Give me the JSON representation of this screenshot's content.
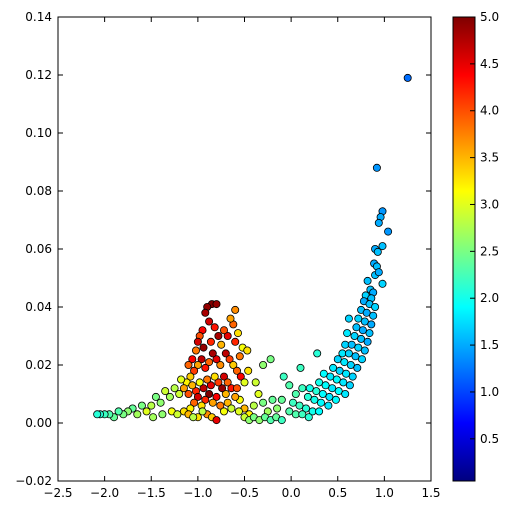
{
  "chart_data": {
    "type": "scatter",
    "title": "",
    "xlabel": "",
    "ylabel": "",
    "xlim": [
      -2.5,
      1.5
    ],
    "ylim": [
      -0.02,
      0.14
    ],
    "x_ticks": [
      "−2.5",
      "−2.0",
      "−1.5",
      "−1.0",
      "−0.5",
      "0.0",
      "0.5",
      "1.0",
      "1.5"
    ],
    "y_ticks": [
      "−0.02",
      "0.00",
      "0.02",
      "0.04",
      "0.06",
      "0.08",
      "0.10",
      "0.12",
      "0.14"
    ],
    "grid": false,
    "colormap": "jet",
    "colorbar": {
      "range": [
        0.05,
        5.0
      ],
      "ticks": [
        "0.5",
        "1.0",
        "1.5",
        "2.0",
        "2.5",
        "3.0",
        "3.5",
        "4.0",
        "4.5",
        "5.0"
      ],
      "colors": [
        "#00007f",
        "#0000ff",
        "#007fff",
        "#00ffff",
        "#7fff7f",
        "#ffff00",
        "#ff7f00",
        "#ff0000",
        "#7f0000"
      ]
    },
    "marker": {
      "shape": "circle",
      "edge_color": "#000000"
    },
    "series": [
      {
        "points": [
          [
            1.25,
            0.119,
            1.2
          ],
          [
            0.92,
            0.088,
            1.4
          ],
          [
            0.98,
            0.073,
            1.4
          ],
          [
            0.96,
            0.071,
            1.5
          ],
          [
            0.94,
            0.069,
            1.5
          ],
          [
            1.04,
            0.066,
            1.4
          ],
          [
            0.9,
            0.06,
            1.5
          ],
          [
            0.93,
            0.059,
            1.6
          ],
          [
            0.98,
            0.061,
            1.6
          ],
          [
            0.89,
            0.055,
            1.5
          ],
          [
            0.92,
            0.054,
            1.6
          ],
          [
            0.9,
            0.051,
            1.6
          ],
          [
            0.94,
            0.052,
            1.5
          ],
          [
            0.82,
            0.049,
            1.6
          ],
          [
            0.98,
            0.048,
            1.7
          ],
          [
            0.85,
            0.046,
            1.6
          ],
          [
            0.88,
            0.045,
            1.5
          ],
          [
            0.8,
            0.044,
            1.7
          ],
          [
            0.86,
            0.043,
            1.6
          ],
          [
            0.78,
            0.042,
            1.5
          ],
          [
            0.84,
            0.041,
            1.6
          ],
          [
            0.9,
            0.04,
            1.7
          ],
          [
            0.75,
            0.039,
            1.6
          ],
          [
            0.81,
            0.038,
            1.5
          ],
          [
            0.88,
            0.037,
            1.6
          ],
          [
            0.72,
            0.036,
            1.7
          ],
          [
            0.79,
            0.035,
            1.6
          ],
          [
            0.86,
            0.034,
            1.5
          ],
          [
            0.62,
            0.036,
            1.7
          ],
          [
            0.7,
            0.033,
            1.6
          ],
          [
            0.77,
            0.032,
            1.5
          ],
          [
            0.84,
            0.031,
            1.6
          ],
          [
            0.6,
            0.031,
            1.8
          ],
          [
            0.68,
            0.03,
            1.7
          ],
          [
            0.75,
            0.029,
            1.6
          ],
          [
            0.82,
            0.028,
            1.5
          ],
          [
            0.58,
            0.027,
            1.7
          ],
          [
            0.65,
            0.027,
            1.6
          ],
          [
            0.72,
            0.026,
            1.7
          ],
          [
            0.79,
            0.025,
            1.6
          ],
          [
            0.55,
            0.024,
            1.8
          ],
          [
            0.62,
            0.024,
            1.7
          ],
          [
            0.69,
            0.023,
            1.6
          ],
          [
            0.76,
            0.022,
            1.7
          ],
          [
            0.28,
            0.024,
            2.1
          ],
          [
            0.5,
            0.022,
            1.7
          ],
          [
            0.57,
            0.021,
            1.8
          ],
          [
            0.64,
            0.02,
            1.7
          ],
          [
            0.71,
            0.019,
            1.6
          ],
          [
            0.45,
            0.019,
            1.8
          ],
          [
            0.52,
            0.018,
            1.7
          ],
          [
            0.59,
            0.017,
            1.8
          ],
          [
            0.66,
            0.016,
            1.7
          ],
          [
            0.35,
            0.017,
            1.9
          ],
          [
            0.42,
            0.016,
            1.8
          ],
          [
            0.49,
            0.015,
            1.9
          ],
          [
            0.56,
            0.014,
            1.8
          ],
          [
            0.63,
            0.013,
            1.7
          ],
          [
            0.3,
            0.014,
            2.0
          ],
          [
            0.37,
            0.013,
            1.9
          ],
          [
            0.44,
            0.012,
            1.8
          ],
          [
            0.51,
            0.011,
            1.9
          ],
          [
            0.58,
            0.01,
            1.8
          ],
          [
            0.2,
            0.012,
            2.0
          ],
          [
            0.27,
            0.011,
            2.1
          ],
          [
            0.34,
            0.01,
            1.9
          ],
          [
            0.41,
            0.009,
            1.8
          ],
          [
            0.48,
            0.008,
            1.9
          ],
          [
            0.1,
            0.019,
            2.2
          ],
          [
            0.12,
            0.012,
            2.2
          ],
          [
            0.18,
            0.009,
            2.1
          ],
          [
            0.25,
            0.008,
            2.0
          ],
          [
            0.32,
            0.007,
            1.9
          ],
          [
            0.4,
            0.006,
            1.8
          ],
          [
            0.05,
            0.01,
            2.3
          ],
          [
            0.02,
            0.007,
            2.2
          ],
          [
            0.09,
            0.006,
            2.2
          ],
          [
            0.16,
            0.005,
            2.1
          ],
          [
            0.23,
            0.004,
            2.0
          ],
          [
            0.3,
            0.004,
            1.9
          ],
          [
            -0.02,
            0.004,
            2.3
          ],
          [
            0.05,
            0.003,
            2.3
          ],
          [
            0.12,
            0.003,
            2.2
          ],
          [
            0.19,
            0.002,
            2.1
          ],
          [
            -0.08,
            0.016,
            2.2
          ],
          [
            -0.02,
            0.013,
            2.3
          ],
          [
            -0.1,
            0.008,
            2.4
          ],
          [
            -0.15,
            0.005,
            2.6
          ],
          [
            -0.2,
            0.008,
            2.4
          ],
          [
            -0.25,
            0.004,
            2.7
          ],
          [
            -0.3,
            0.007,
            2.5
          ],
          [
            -0.35,
            0.01,
            3.0
          ],
          [
            -0.4,
            0.006,
            2.8
          ],
          [
            -0.45,
            0.003,
            3.2
          ],
          [
            -0.5,
            0.005,
            3.5
          ],
          [
            -0.55,
            0.008,
            3.1
          ],
          [
            -0.38,
            0.014,
            2.9
          ],
          [
            -0.3,
            0.02,
            2.6
          ],
          [
            -0.22,
            0.022,
            2.5
          ],
          [
            -0.46,
            0.018,
            3.3
          ],
          [
            -0.6,
            0.039,
            3.7
          ],
          [
            -0.57,
            0.031,
            3.3
          ],
          [
            -0.52,
            0.026,
            3.1
          ],
          [
            -0.47,
            0.025,
            3.3
          ],
          [
            -0.62,
            0.034,
            3.9
          ],
          [
            -0.65,
            0.036,
            3.6
          ],
          [
            -0.6,
            0.028,
            4.2
          ],
          [
            -0.55,
            0.023,
            3.8
          ],
          [
            -0.68,
            0.03,
            4.5
          ],
          [
            -0.72,
            0.032,
            4.0
          ],
          [
            -0.75,
            0.027,
            3.5
          ],
          [
            -0.7,
            0.024,
            4.7
          ],
          [
            -0.66,
            0.022,
            4.1
          ],
          [
            -0.62,
            0.02,
            3.4
          ],
          [
            -0.58,
            0.018,
            3.9
          ],
          [
            -0.54,
            0.016,
            4.4
          ],
          [
            -0.5,
            0.014,
            3.0
          ],
          [
            -0.78,
            0.03,
            4.8
          ],
          [
            -0.82,
            0.033,
            4.3
          ],
          [
            -0.85,
            0.041,
            5.0
          ],
          [
            -0.9,
            0.04,
            4.9
          ],
          [
            -0.92,
            0.038,
            4.8
          ],
          [
            -0.8,
            0.041,
            4.9
          ],
          [
            -0.88,
            0.035,
            4.6
          ],
          [
            -0.95,
            0.032,
            4.4
          ],
          [
            -0.98,
            0.03,
            4.0
          ],
          [
            -1.0,
            0.028,
            4.6
          ],
          [
            -1.02,
            0.025,
            3.8
          ],
          [
            -0.94,
            0.026,
            4.9
          ],
          [
            -0.86,
            0.028,
            4.2
          ],
          [
            -0.76,
            0.02,
            3.7
          ],
          [
            -0.8,
            0.022,
            4.5
          ],
          [
            -0.84,
            0.024,
            4.8
          ],
          [
            -0.88,
            0.021,
            3.9
          ],
          [
            -0.92,
            0.019,
            4.3
          ],
          [
            -0.96,
            0.022,
            4.7
          ],
          [
            -1.0,
            0.02,
            3.6
          ],
          [
            -1.04,
            0.018,
            4.1
          ],
          [
            -1.08,
            0.016,
            3.4
          ],
          [
            -1.06,
            0.022,
            4.4
          ],
          [
            -1.1,
            0.02,
            3.9
          ],
          [
            -1.12,
            0.014,
            3.2
          ],
          [
            -1.15,
            0.012,
            3.6
          ],
          [
            -1.18,
            0.015,
            3.0
          ],
          [
            -1.2,
            0.01,
            2.9
          ],
          [
            -0.72,
            0.016,
            4.6
          ],
          [
            -0.68,
            0.014,
            3.9
          ],
          [
            -0.64,
            0.012,
            4.3
          ],
          [
            -0.7,
            0.01,
            3.5
          ],
          [
            -0.74,
            0.012,
            4.9
          ],
          [
            -0.78,
            0.014,
            4.1
          ],
          [
            -0.82,
            0.016,
            3.3
          ],
          [
            -0.86,
            0.013,
            4.5
          ],
          [
            -0.9,
            0.015,
            3.8
          ],
          [
            -0.94,
            0.012,
            4.7
          ],
          [
            -0.98,
            0.014,
            3.1
          ],
          [
            -1.02,
            0.011,
            4.2
          ],
          [
            -1.06,
            0.013,
            3.5
          ],
          [
            -1.1,
            0.01,
            4.0
          ],
          [
            -0.8,
            0.009,
            4.4
          ],
          [
            -0.84,
            0.007,
            3.6
          ],
          [
            -0.88,
            0.01,
            5.0
          ],
          [
            -0.92,
            0.008,
            4.2
          ],
          [
            -0.96,
            0.006,
            3.3
          ],
          [
            -1.0,
            0.009,
            4.6
          ],
          [
            -1.04,
            0.007,
            3.9
          ],
          [
            -1.08,
            0.005,
            3.2
          ],
          [
            -0.76,
            0.006,
            3.8
          ],
          [
            -0.72,
            0.004,
            3.1
          ],
          [
            -0.68,
            0.007,
            3.5
          ],
          [
            -0.64,
            0.005,
            2.9
          ],
          [
            -0.6,
            0.009,
            3.6
          ],
          [
            -0.58,
            0.012,
            4.0
          ],
          [
            -0.56,
            0.004,
            3.0
          ],
          [
            -0.9,
            0.003,
            3.7
          ],
          [
            -0.85,
            0.002,
            3.4
          ],
          [
            -0.95,
            0.004,
            2.8
          ],
          [
            -1.0,
            0.002,
            3.3
          ],
          [
            -0.8,
            0.001,
            4.5
          ],
          [
            -1.25,
            0.012,
            2.8
          ],
          [
            -1.3,
            0.009,
            2.7
          ],
          [
            -1.35,
            0.011,
            2.9
          ],
          [
            -1.4,
            0.007,
            2.6
          ],
          [
            -1.45,
            0.009,
            2.5
          ],
          [
            -1.5,
            0.006,
            2.8
          ],
          [
            -1.55,
            0.004,
            3.0
          ],
          [
            -1.6,
            0.006,
            2.5
          ],
          [
            -1.65,
            0.003,
            2.7
          ],
          [
            -1.7,
            0.005,
            2.4
          ],
          [
            -1.75,
            0.004,
            2.6
          ],
          [
            -1.8,
            0.003,
            2.5
          ],
          [
            -1.85,
            0.004,
            2.3
          ],
          [
            -1.9,
            0.002,
            2.4
          ],
          [
            -1.95,
            0.003,
            2.3
          ],
          [
            -2.0,
            0.003,
            2.2
          ],
          [
            -2.05,
            0.003,
            2.1
          ],
          [
            -2.08,
            0.003,
            2.1
          ],
          [
            -1.28,
            0.004,
            3.1
          ],
          [
            -1.22,
            0.003,
            2.9
          ],
          [
            -1.15,
            0.004,
            3.3
          ],
          [
            -1.1,
            0.003,
            3.5
          ],
          [
            -1.05,
            0.002,
            2.8
          ],
          [
            -1.38,
            0.003,
            2.6
          ],
          [
            -1.48,
            0.002,
            2.7
          ],
          [
            -0.5,
            0.002,
            2.9
          ],
          [
            -0.45,
            0.001,
            2.6
          ],
          [
            -0.4,
            0.002,
            2.5
          ],
          [
            -0.34,
            0.001,
            2.6
          ],
          [
            -0.28,
            0.002,
            2.4
          ],
          [
            -0.22,
            0.001,
            2.3
          ],
          [
            -0.16,
            0.002,
            2.4
          ],
          [
            -0.1,
            0.001,
            2.2
          ]
        ]
      }
    ]
  }
}
